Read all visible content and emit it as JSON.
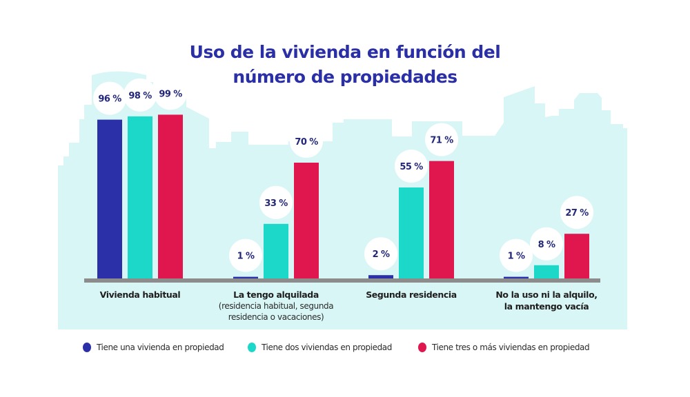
{
  "chart_data": {
    "type": "bar",
    "title": "Uso de la vivienda en función del número de propiedades",
    "title_lines": [
      "Uso de la vivienda en función del",
      "número de propiedades"
    ],
    "xlabel": "",
    "ylabel": "",
    "ylim": [
      0,
      100
    ],
    "grid": false,
    "value_suffix": " %",
    "legend_position": "bottom",
    "categories": [
      {
        "main": "Vivienda habitual",
        "sub": []
      },
      {
        "main": "La tengo alquilada",
        "sub": [
          "(residencia habitual, segunda",
          "residencia o vacaciones)"
        ]
      },
      {
        "main": "Segunda residencia",
        "sub": []
      },
      {
        "main": "No la uso ni la alquilo,",
        "main2": "la mantengo vacía",
        "sub": []
      }
    ],
    "series": [
      {
        "name": "Tiene una vivienda en propiedad",
        "color": "#2b30a8",
        "values": [
          96,
          1,
          2,
          1
        ]
      },
      {
        "name": "Tiene dos viviendas en propiedad",
        "color": "#1cd8c8",
        "values": [
          98,
          33,
          55,
          8
        ]
      },
      {
        "name": "Tiene tres o más viviendas en propiedad",
        "color": "#e0164f",
        "values": [
          99,
          70,
          71,
          27
        ]
      }
    ],
    "colors": {
      "background_skyline": "#d9f6f6",
      "baseline": "#8c8c8c",
      "value_label": "#23277a",
      "title": "#2b2fa6"
    }
  }
}
